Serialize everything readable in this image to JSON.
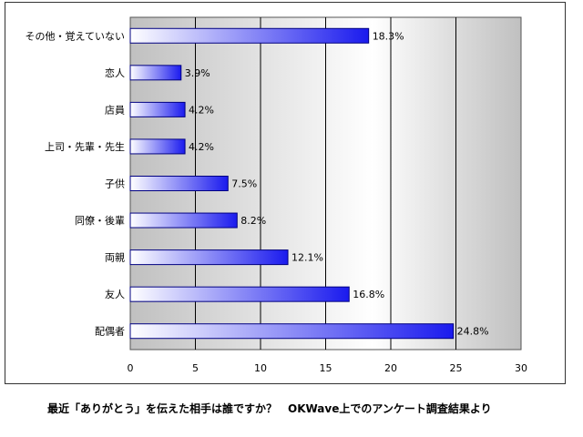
{
  "caption": "最近「ありがとう」を伝えた相手は誰ですか？　OKWave上でのアンケート調査結果より",
  "chart_data": {
    "type": "bar",
    "orientation": "horizontal",
    "categories": [
      "その他・覚えていない",
      "恋人",
      "店員",
      "上司・先輩・先生",
      "子供",
      "同僚・後輩",
      "両親",
      "友人",
      "配偶者"
    ],
    "values": [
      18.3,
      3.9,
      4.2,
      4.2,
      7.5,
      8.2,
      12.1,
      16.8,
      24.8
    ],
    "value_labels": [
      "18.3%",
      "3.9%",
      "4.2%",
      "4.2%",
      "7.5%",
      "8.2%",
      "12.1%",
      "16.8%",
      "24.8%"
    ],
    "xticks": [
      "0",
      "5",
      "10",
      "15",
      "20",
      "25",
      "30"
    ],
    "xlim": [
      0,
      30
    ],
    "grid": true,
    "legend": "none",
    "colors": {
      "bar_start": "#ffffff",
      "bar_end": "#1a1aee",
      "bar_border": "#000080",
      "plot_bg_dark": "#c0c0c0",
      "plot_bg_light": "#ffffff"
    }
  }
}
